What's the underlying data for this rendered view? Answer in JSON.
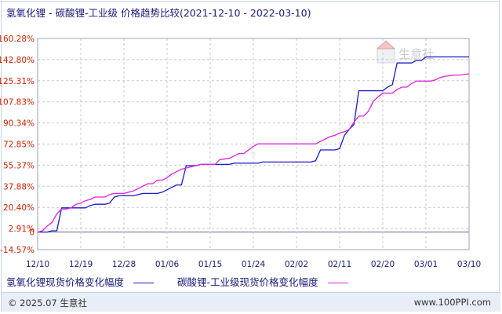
{
  "title": "氢氧化锂 - 碳酸锂-工业级 价格趋势比较(2021-12-10 - 2022-03-10)",
  "watermark": "生意社",
  "footer": {
    "copyright": "© 2025.07 生意社",
    "site": "www.100PPI.com"
  },
  "colors": {
    "series1": "#1a1acc",
    "series2": "#dd22dd",
    "ytick": "#cc2200",
    "xtick": "#1a1a7a",
    "grid": "#c8c8c8",
    "zero_line": "#6a6a8a"
  },
  "chart_data": {
    "type": "line",
    "xlabel": "",
    "ylabel": "",
    "ylim": [
      -14.57,
      160.28
    ],
    "y_ticks": [
      "160.28%",
      "142.80%",
      "125.31%",
      "107.83%",
      "90.34%",
      "72.85%",
      "55.37%",
      "37.88%",
      "20.40%",
      "2.91%",
      "0",
      "-14.57%"
    ],
    "y_tick_values": [
      160.28,
      142.8,
      125.31,
      107.83,
      90.34,
      72.85,
      55.37,
      37.88,
      20.4,
      2.91,
      0,
      -14.57
    ],
    "x_ticks": [
      "12/10",
      "12/19",
      "12/28",
      "01/06",
      "01/15",
      "01/24",
      "02/02",
      "02/11",
      "02/20",
      "03/01",
      "03/10"
    ],
    "x_tick_days": [
      0,
      9,
      18,
      27,
      36,
      45,
      54,
      63,
      72,
      81,
      90
    ],
    "x_range_days": [
      0,
      90
    ],
    "grid": true,
    "legend_position": "bottom",
    "series": [
      {
        "name": "氢氧化锂现货价格变化幅度",
        "color": "#1a1acc",
        "points": [
          [
            0,
            0
          ],
          [
            2,
            0
          ],
          [
            3,
            1
          ],
          [
            4,
            1
          ],
          [
            5,
            20
          ],
          [
            10,
            20
          ],
          [
            11,
            22
          ],
          [
            12,
            23
          ],
          [
            14,
            23
          ],
          [
            15,
            24
          ],
          [
            16,
            29
          ],
          [
            17,
            30
          ],
          [
            20,
            30
          ],
          [
            21,
            31
          ],
          [
            22,
            32
          ],
          [
            25,
            32
          ],
          [
            26,
            33
          ],
          [
            27,
            35
          ],
          [
            28,
            37
          ],
          [
            29,
            39
          ],
          [
            30,
            39
          ],
          [
            31,
            55
          ],
          [
            33,
            55
          ],
          [
            34,
            56
          ],
          [
            40,
            56
          ],
          [
            41,
            57
          ],
          [
            46,
            57
          ],
          [
            47,
            58
          ],
          [
            57,
            58
          ],
          [
            58,
            59
          ],
          [
            59,
            68
          ],
          [
            60,
            68
          ],
          [
            62,
            68
          ],
          [
            63,
            69
          ],
          [
            64,
            80
          ],
          [
            65,
            85
          ],
          [
            66,
            89
          ],
          [
            67,
            117
          ],
          [
            69,
            117
          ],
          [
            72,
            117
          ],
          [
            73,
            120
          ],
          [
            74,
            122
          ],
          [
            75,
            140
          ],
          [
            76,
            140
          ],
          [
            78,
            140
          ],
          [
            79,
            142
          ],
          [
            80,
            142
          ],
          [
            81,
            145
          ],
          [
            86,
            145
          ],
          [
            90,
            145
          ]
        ]
      },
      {
        "name": "碳酸锂-工业级现货价格变化幅度",
        "color": "#dd22dd",
        "points": [
          [
            0,
            0
          ],
          [
            1,
            1
          ],
          [
            2,
            5
          ],
          [
            3,
            8
          ],
          [
            4,
            15
          ],
          [
            5,
            19
          ],
          [
            6,
            19
          ],
          [
            7,
            20
          ],
          [
            8,
            23
          ],
          [
            9,
            24
          ],
          [
            10,
            26
          ],
          [
            11,
            27
          ],
          [
            12,
            29
          ],
          [
            14,
            29
          ],
          [
            15,
            31
          ],
          [
            16,
            32
          ],
          [
            18,
            32
          ],
          [
            19,
            33
          ],
          [
            20,
            34
          ],
          [
            21,
            36
          ],
          [
            22,
            38
          ],
          [
            23,
            40
          ],
          [
            24,
            40
          ],
          [
            25,
            43
          ],
          [
            26,
            43
          ],
          [
            27,
            45
          ],
          [
            28,
            48
          ],
          [
            29,
            50
          ],
          [
            30,
            52
          ],
          [
            31,
            53
          ],
          [
            33,
            55
          ],
          [
            34,
            56
          ],
          [
            35,
            56
          ],
          [
            36,
            56
          ],
          [
            37,
            56
          ],
          [
            38,
            60
          ],
          [
            40,
            61
          ],
          [
            41,
            63
          ],
          [
            42,
            65
          ],
          [
            43,
            65
          ],
          [
            44,
            68
          ],
          [
            45,
            71
          ],
          [
            46,
            73
          ],
          [
            52,
            73
          ],
          [
            53,
            73
          ],
          [
            58,
            73
          ],
          [
            59,
            75
          ],
          [
            60,
            77
          ],
          [
            61,
            79
          ],
          [
            62,
            80
          ],
          [
            63,
            82
          ],
          [
            64,
            83
          ],
          [
            65,
            85
          ],
          [
            66,
            91
          ],
          [
            67,
            96
          ],
          [
            68,
            96
          ],
          [
            69,
            100
          ],
          [
            70,
            108
          ],
          [
            71,
            112
          ],
          [
            72,
            115
          ],
          [
            74,
            115
          ],
          [
            75,
            118
          ],
          [
            76,
            120
          ],
          [
            77,
            120
          ],
          [
            78,
            123
          ],
          [
            79,
            125
          ],
          [
            80,
            125
          ],
          [
            82,
            125
          ],
          [
            83,
            126
          ],
          [
            84,
            128
          ],
          [
            85,
            129
          ],
          [
            87,
            130
          ],
          [
            88,
            130
          ],
          [
            90,
            131
          ]
        ]
      }
    ]
  }
}
